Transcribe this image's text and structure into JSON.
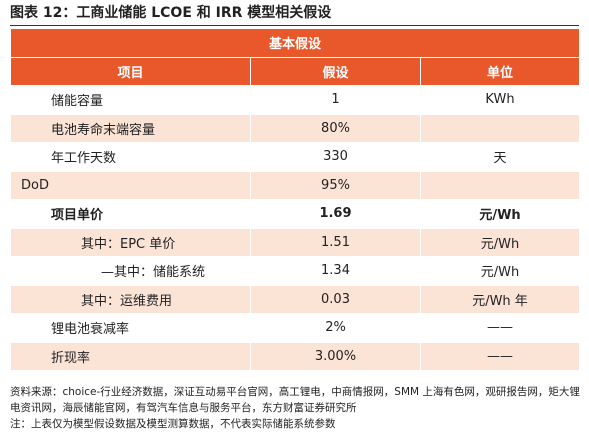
{
  "title": "图表 12：工商业储能 LCOE 和 IRR 模型相关假设",
  "table": {
    "caption": "基本假设",
    "header": [
      "项目",
      "假设",
      "单位"
    ],
    "rows": [
      [
        "储能容量",
        "1",
        "KWh"
      ],
      [
        "电池寿命末端容量",
        "80%"
      ],
      [
        "年工作天数",
        "330",
        "天"
      ],
      [
        "DoD",
        "95%"
      ],
      [
        "项目单价",
        "1.69",
        "元/Wh"
      ],
      [
        "其中：EPC 单价",
        "1.51",
        "元/Wh"
      ],
      [
        "—其中：储能系统",
        "1.34",
        "元/Wh"
      ],
      [
        "其中：运维费用",
        "0.03",
        "元/Wh 年"
      ],
      [
        "锂电池衰减率",
        "2%",
        "——"
      ],
      [
        "折现率",
        "3.00%",
        "——"
      ]
    ]
  },
  "notes": {
    "source": "资料来源：choice-行业经济数据，深证互动易平台官网，高工锂电，中商情报网，SMM 上海有色网，观研报告网，矩大锂电资讯网，海辰储能官网，有驾汽车信息与服务平台，东方财富证券研究所",
    "note": "注：上表仅为模型假设数据及模型测算数据，不代表实际储能系统参数"
  }
}
